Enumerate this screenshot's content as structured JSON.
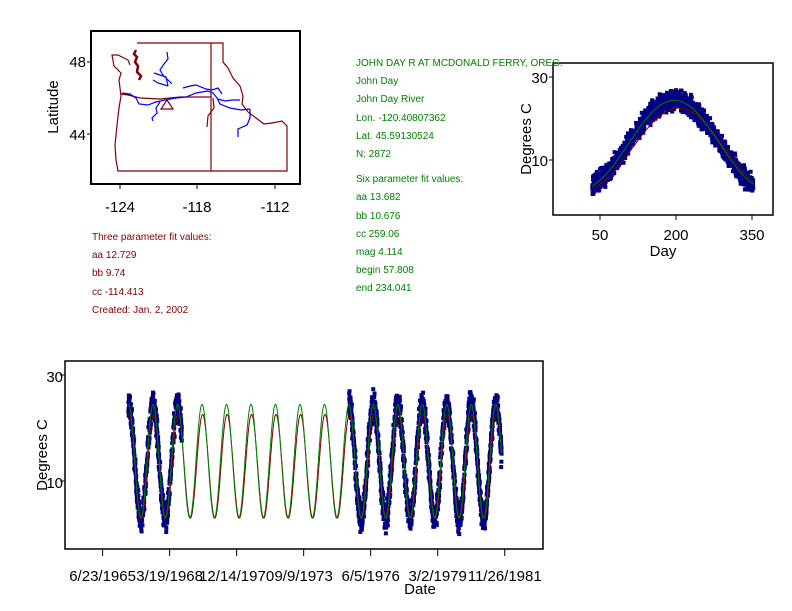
{
  "station": {
    "title": "JOHN DAY R AT MCDONALD FERRY, OREG.",
    "name": "John Day",
    "river": "John Day River",
    "lon": "Lon. -120.40807362",
    "lat": "Lat. 45.59130524",
    "n": "N: 2872"
  },
  "six_param": {
    "heading": "Six parameter fit values:",
    "aa": "aa 13.682",
    "bb": "bb 10.676",
    "cc": "cc 259.06",
    "mag": "mag 4.114",
    "begin": "begin 57.808",
    "end": "end 234.041"
  },
  "three_param": {
    "heading": "Three parameter fit values:",
    "aa": "aa 12.729",
    "bb": "bb 9.74",
    "cc": "cc -114.413",
    "created": "Created:   Jan. 2, 2002"
  },
  "colors": {
    "observed": "#000080",
    "three_param_fit": "#800000",
    "six_param_fit": "#008000",
    "rivers": "#0000ff",
    "borders": "#800000"
  },
  "chart_data": [
    {
      "type": "map",
      "ylabel": "Latitude",
      "xticks": [
        "-124",
        "-118",
        "-112"
      ],
      "yticks": [
        "48",
        "44"
      ],
      "xlim": [
        -126.5,
        -110.5
      ],
      "ylim": [
        41.3,
        49.7
      ]
    },
    {
      "type": "scatter",
      "xlabel": "Day",
      "ylabel": "Degrees C",
      "xticks": [
        "50",
        "200",
        "350"
      ],
      "yticks": [
        "30",
        "10"
      ],
      "xlim": [
        -43,
        393
      ],
      "ylim": [
        -3.5,
        33.4
      ],
      "observed_day_range": [
        35,
        355
      ],
      "fit3": {
        "aa": 12.729,
        "bb": 9.74,
        "cc": -114.413
      },
      "fit6": {
        "aa": 13.682,
        "bb": 10.676,
        "cc": 259.06,
        "mag": 4.114,
        "begin": 57.808,
        "end": 234.041
      }
    },
    {
      "type": "scatter",
      "xlabel": "Date",
      "ylabel": "Degrees C",
      "xticks": [
        "6/23/1965",
        "3/19/1968",
        "12/14/1970",
        "9/9/1973",
        "6/5/1976",
        "3/2/1979",
        "11/26/1981"
      ],
      "yticks": [
        "30",
        "10"
      ],
      "xlim": [
        "1963-12-10",
        "1983-06-20"
      ],
      "ylim": [
        -2.8,
        32.5
      ],
      "observed_periods": [
        [
          "1966-07-13",
          "1968-09-18"
        ],
        [
          "1975-07-19",
          "1981-10-10"
        ]
      ]
    }
  ]
}
